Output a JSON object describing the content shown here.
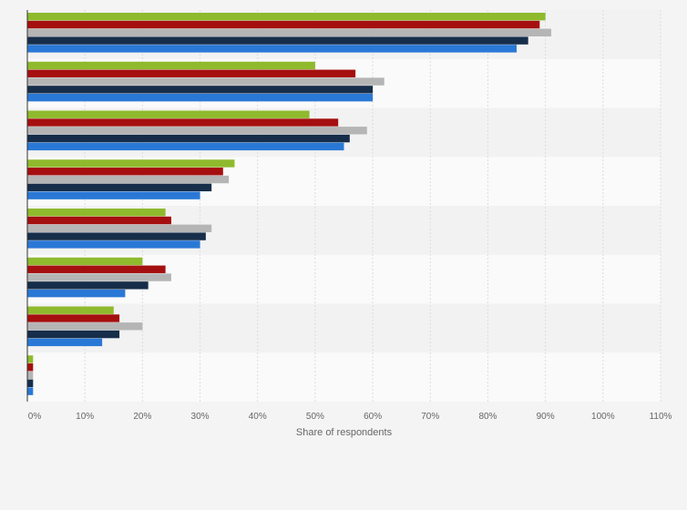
{
  "chart_data": {
    "type": "bar",
    "orientation": "horizontal",
    "xlabel": "Share of respondents",
    "ylabel": "",
    "xlim": [
      0,
      110
    ],
    "x_ticks": [
      0,
      10,
      20,
      30,
      40,
      50,
      60,
      70,
      80,
      90,
      100,
      110
    ],
    "tick_suffix": "%",
    "grid": true,
    "legend": "none",
    "category_count": 8,
    "series": [
      {
        "color": "#8fba2d",
        "values": [
          90,
          50,
          49,
          36,
          24,
          20,
          15,
          1
        ]
      },
      {
        "color": "#a50f0f",
        "values": [
          89,
          57,
          54,
          34,
          25,
          24,
          16,
          1
        ]
      },
      {
        "color": "#b5b5b5",
        "values": [
          91,
          62,
          59,
          35,
          32,
          25,
          20,
          1
        ]
      },
      {
        "color": "#162e4a",
        "values": [
          87,
          60,
          56,
          32,
          31,
          21,
          16,
          1
        ]
      },
      {
        "color": "#2a78d6",
        "values": [
          85,
          60,
          55,
          30,
          30,
          17,
          13,
          1
        ]
      }
    ]
  }
}
